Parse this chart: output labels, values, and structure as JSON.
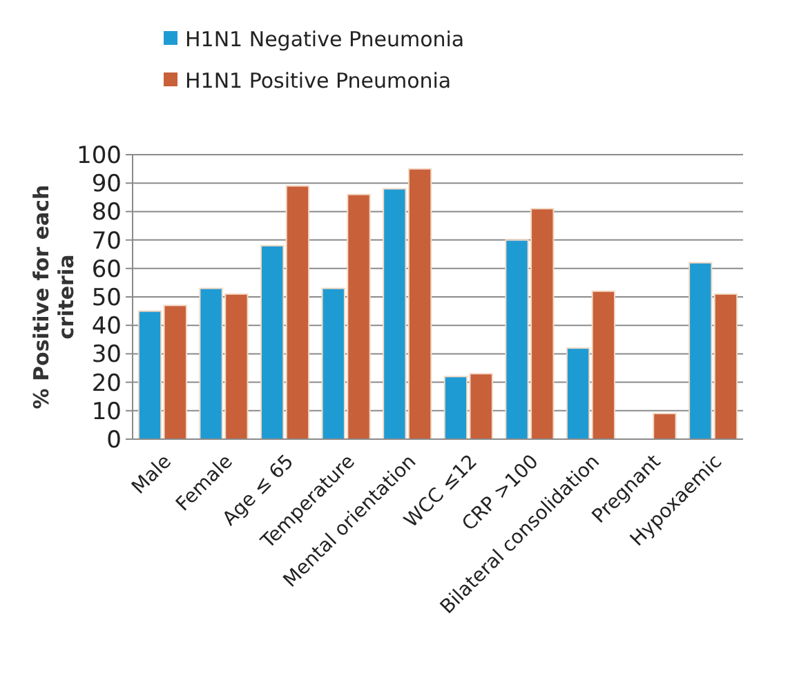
{
  "chart_data": {
    "type": "bar",
    "ylabel": "% Positive for each criteria",
    "categories": [
      "Male",
      "Female",
      "Age ≤ 65",
      "Temperature",
      "Mental orientation",
      "WCC ≤12",
      "CRP >100",
      "Bilateral consolidation",
      "Pregnant",
      "Hypoxaemic"
    ],
    "series": [
      {
        "name": "H1N1 Negative Pneumonia",
        "color": "#1f9bd4",
        "values": [
          45,
          53,
          68,
          53,
          88,
          22,
          70,
          32,
          null,
          62
        ]
      },
      {
        "name": "H1N1 Positive Pneumonia",
        "color": "#c8603a",
        "values": [
          47,
          51,
          89,
          86,
          95,
          23,
          81,
          52,
          9,
          51
        ]
      }
    ],
    "ylim": [
      0,
      100
    ],
    "yticks": [
      0,
      10,
      20,
      30,
      40,
      50,
      60,
      70,
      80,
      90,
      100
    ],
    "grid": "y",
    "legend": "top left"
  }
}
